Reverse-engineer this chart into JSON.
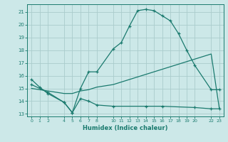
{
  "title": "",
  "xlabel": "Humidex (Indice chaleur)",
  "bg_color": "#cce8e8",
  "grid_color": "#aacccc",
  "line_color": "#1a7a6e",
  "xticks": [
    0,
    1,
    2,
    4,
    5,
    6,
    7,
    8,
    10,
    11,
    12,
    13,
    14,
    15,
    16,
    17,
    18,
    19,
    20,
    22,
    23
  ],
  "yticks": [
    13,
    14,
    15,
    16,
    17,
    18,
    19,
    20,
    21
  ],
  "ylim": [
    12.8,
    21.6
  ],
  "xlim": [
    -0.5,
    23.5
  ],
  "curve1_x": [
    0,
    1,
    2,
    4,
    5,
    6,
    7,
    8,
    10,
    11,
    12,
    13,
    14,
    15,
    16,
    17,
    18,
    19,
    20,
    22,
    23
  ],
  "curve1_y": [
    15.7,
    15.1,
    14.6,
    13.9,
    13.1,
    15.0,
    16.3,
    16.3,
    18.1,
    18.6,
    19.9,
    21.1,
    21.2,
    21.1,
    20.7,
    20.3,
    19.3,
    18.0,
    16.8,
    14.9,
    14.9
  ],
  "curve2_x": [
    0,
    1,
    2,
    4,
    5,
    6,
    7,
    8,
    10,
    11,
    12,
    13,
    14,
    15,
    16,
    17,
    18,
    19,
    20,
    22,
    23
  ],
  "curve2_y": [
    15.0,
    14.9,
    14.8,
    14.6,
    14.6,
    14.8,
    14.9,
    15.1,
    15.3,
    15.5,
    15.7,
    15.9,
    16.1,
    16.3,
    16.5,
    16.7,
    16.9,
    17.1,
    17.3,
    17.7,
    13.4
  ],
  "curve3_x": [
    0,
    2,
    4,
    5,
    6,
    7,
    8,
    10,
    14,
    16,
    20,
    22,
    23
  ],
  "curve3_y": [
    15.3,
    14.7,
    13.9,
    13.1,
    14.2,
    14.0,
    13.7,
    13.6,
    13.6,
    13.6,
    13.5,
    13.4,
    13.4
  ]
}
